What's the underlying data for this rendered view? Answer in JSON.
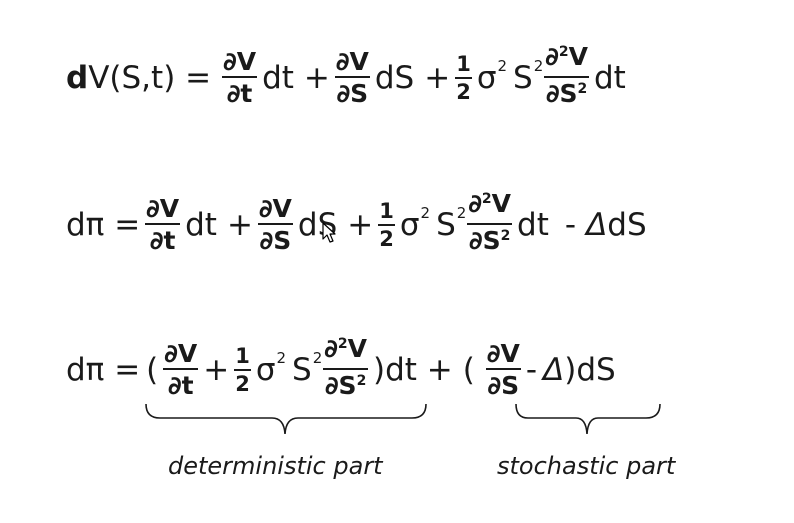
{
  "equation1": {
    "lhs_d": "d",
    "lhs_rest": "V(S,t) =",
    "frac1_num": "∂V",
    "frac1_den": "∂t",
    "dt": "dt",
    "plus": "+",
    "frac2_num": "∂V",
    "frac2_den": "∂S",
    "dS": "dS",
    "half_num": "1",
    "half_den": "2",
    "sigma": "σ",
    "sq": "2",
    "S": "S",
    "frac3_num": "∂",
    "frac3_num_exp": "2",
    "frac3_num_v": "V",
    "frac3_den": "∂S",
    "frac3_den_exp": "2"
  },
  "equation2": {
    "lhs": "dπ =",
    "frac1_num": "∂V",
    "frac1_den": "∂t",
    "dt": "dt",
    "plus": "+",
    "frac2_num": "∂V",
    "frac2_den": "∂S",
    "dS": "dS",
    "half_num": "1",
    "half_den": "2",
    "sigma": "σ",
    "sq": "2",
    "S": "S",
    "frac3_num": "∂",
    "frac3_num_exp": "2",
    "frac3_num_v": "V",
    "frac3_den": "∂S",
    "frac3_den_exp": "2",
    "minus": "-",
    "delta": "Δ",
    "dS2": "dS"
  },
  "equation3": {
    "lhs": "dπ =",
    "open1": "(",
    "frac1_num": "∂V",
    "frac1_den": "∂t",
    "plus": "+",
    "half_num": "1",
    "half_den": "2",
    "sigma": "σ",
    "sq": "2",
    "S": "S",
    "frac3_num": "∂",
    "frac3_num_exp": "2",
    "frac3_num_v": "V",
    "frac3_den": "∂S",
    "frac3_den_exp": "2",
    "close1_dt": ")dt +",
    "open2": "(",
    "frac2_num": "∂V",
    "frac2_den": "∂S",
    "minus": "-",
    "delta": "Δ",
    "close2_dS": ")dS"
  },
  "captions": {
    "deterministic": "deterministic part",
    "stochastic": "stochastic part"
  }
}
